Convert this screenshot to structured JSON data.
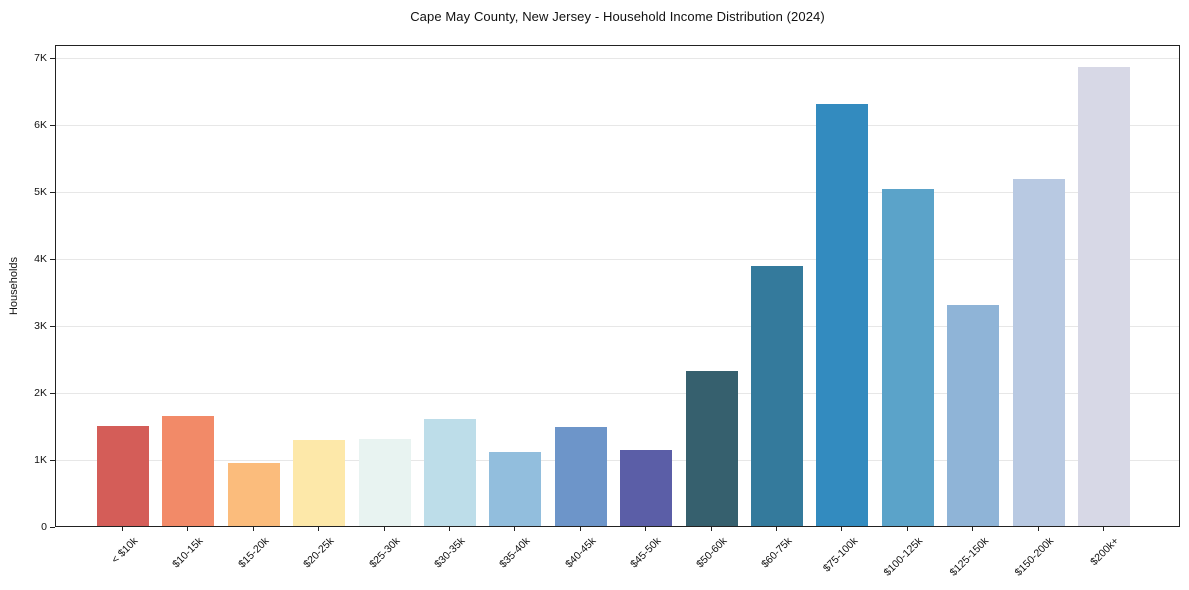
{
  "page": {
    "background": "#ffffff"
  },
  "chart_data": {
    "type": "bar",
    "title": "Cape May County, New Jersey - Household Income Distribution (2024)",
    "xlabel": "",
    "ylabel": "Households",
    "categories": [
      "< $10k",
      "$10-15k",
      "$15-20k",
      "$20-25k",
      "$25-30k",
      "$30-35k",
      "$35-40k",
      "$40-45k",
      "$45-50k",
      "$50-60k",
      "$60-75k",
      "$75-100k",
      "$100-125k",
      "$125-150k",
      "$150-200k",
      "$200k+"
    ],
    "values": [
      1500,
      1650,
      940,
      1290,
      1300,
      1600,
      1110,
      1480,
      1140,
      2320,
      3890,
      6300,
      5030,
      3300,
      5180,
      6850
    ],
    "bar_colors": [
      "#d45d58",
      "#f28a68",
      "#fbbc7c",
      "#fde8a9",
      "#e8f3f1",
      "#bddde9",
      "#92bedd",
      "#6d95c9",
      "#5b5ea7",
      "#36606e",
      "#347a9c",
      "#338bbf",
      "#5ba3c9",
      "#8fb4d7",
      "#b8c9e2",
      "#d7d8e6"
    ],
    "ylim": [
      0,
      7200
    ],
    "yticks": [
      {
        "value": 0,
        "label": "0"
      },
      {
        "value": 1000,
        "label": "1K"
      },
      {
        "value": 2000,
        "label": "2K"
      },
      {
        "value": 3000,
        "label": "3K"
      },
      {
        "value": 4000,
        "label": "4K"
      },
      {
        "value": 5000,
        "label": "5K"
      },
      {
        "value": 6000,
        "label": "6K"
      },
      {
        "value": 7000,
        "label": "7K"
      }
    ],
    "grid": "horizontal",
    "legend": "none",
    "colors": {
      "axis": "#222222",
      "gridline": "#e7e7e7",
      "text": "#111111",
      "background": "#ffffff"
    }
  }
}
